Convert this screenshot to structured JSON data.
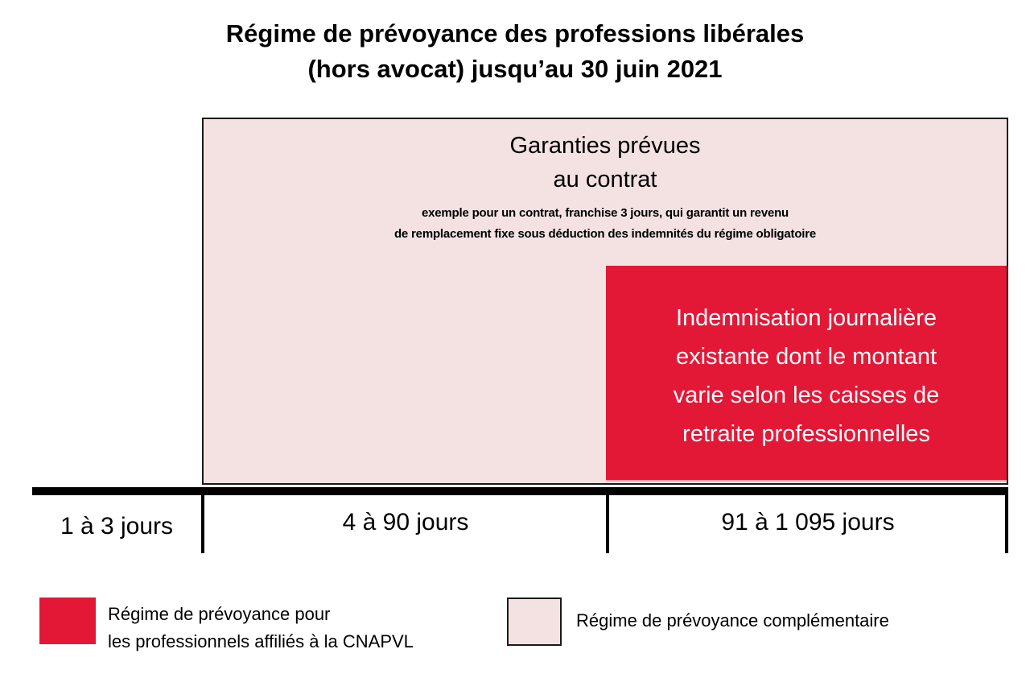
{
  "title": {
    "line1": "Régime de prévoyance des professions libérales",
    "line2": "(hors avocat) jusqu’au 30 juin 2021"
  },
  "complementary_box": {
    "heading_line1": "Garanties prévues",
    "heading_line2": "au contrat",
    "sub_line1": "exemple pour un contrat, franchise 3 jours, qui garantit un revenu",
    "sub_line2": "de remplacement fixe sous déduction des indemnités du régime obligatoire",
    "color": "#f4e2e2"
  },
  "cnapvl_box": {
    "line1": "Indemnisation journalière",
    "line2": "existante dont le montant",
    "line3": "varie selon les caisses de",
    "line4": "retraite professionnelles",
    "color": "#e31837"
  },
  "timeline": {
    "periods": [
      {
        "label": "1 à 3 jours"
      },
      {
        "label": "4 à 90 jours"
      },
      {
        "label": "91 à 1 095 jours"
      }
    ]
  },
  "legend": {
    "items": [
      {
        "line1": "Régime de prévoyance pour",
        "line2": "les professionnels affiliés à la CNAPVL",
        "color": "#e31837"
      },
      {
        "line1": "Régime de prévoyance complémentaire",
        "color": "#f4e2e2"
      }
    ]
  }
}
